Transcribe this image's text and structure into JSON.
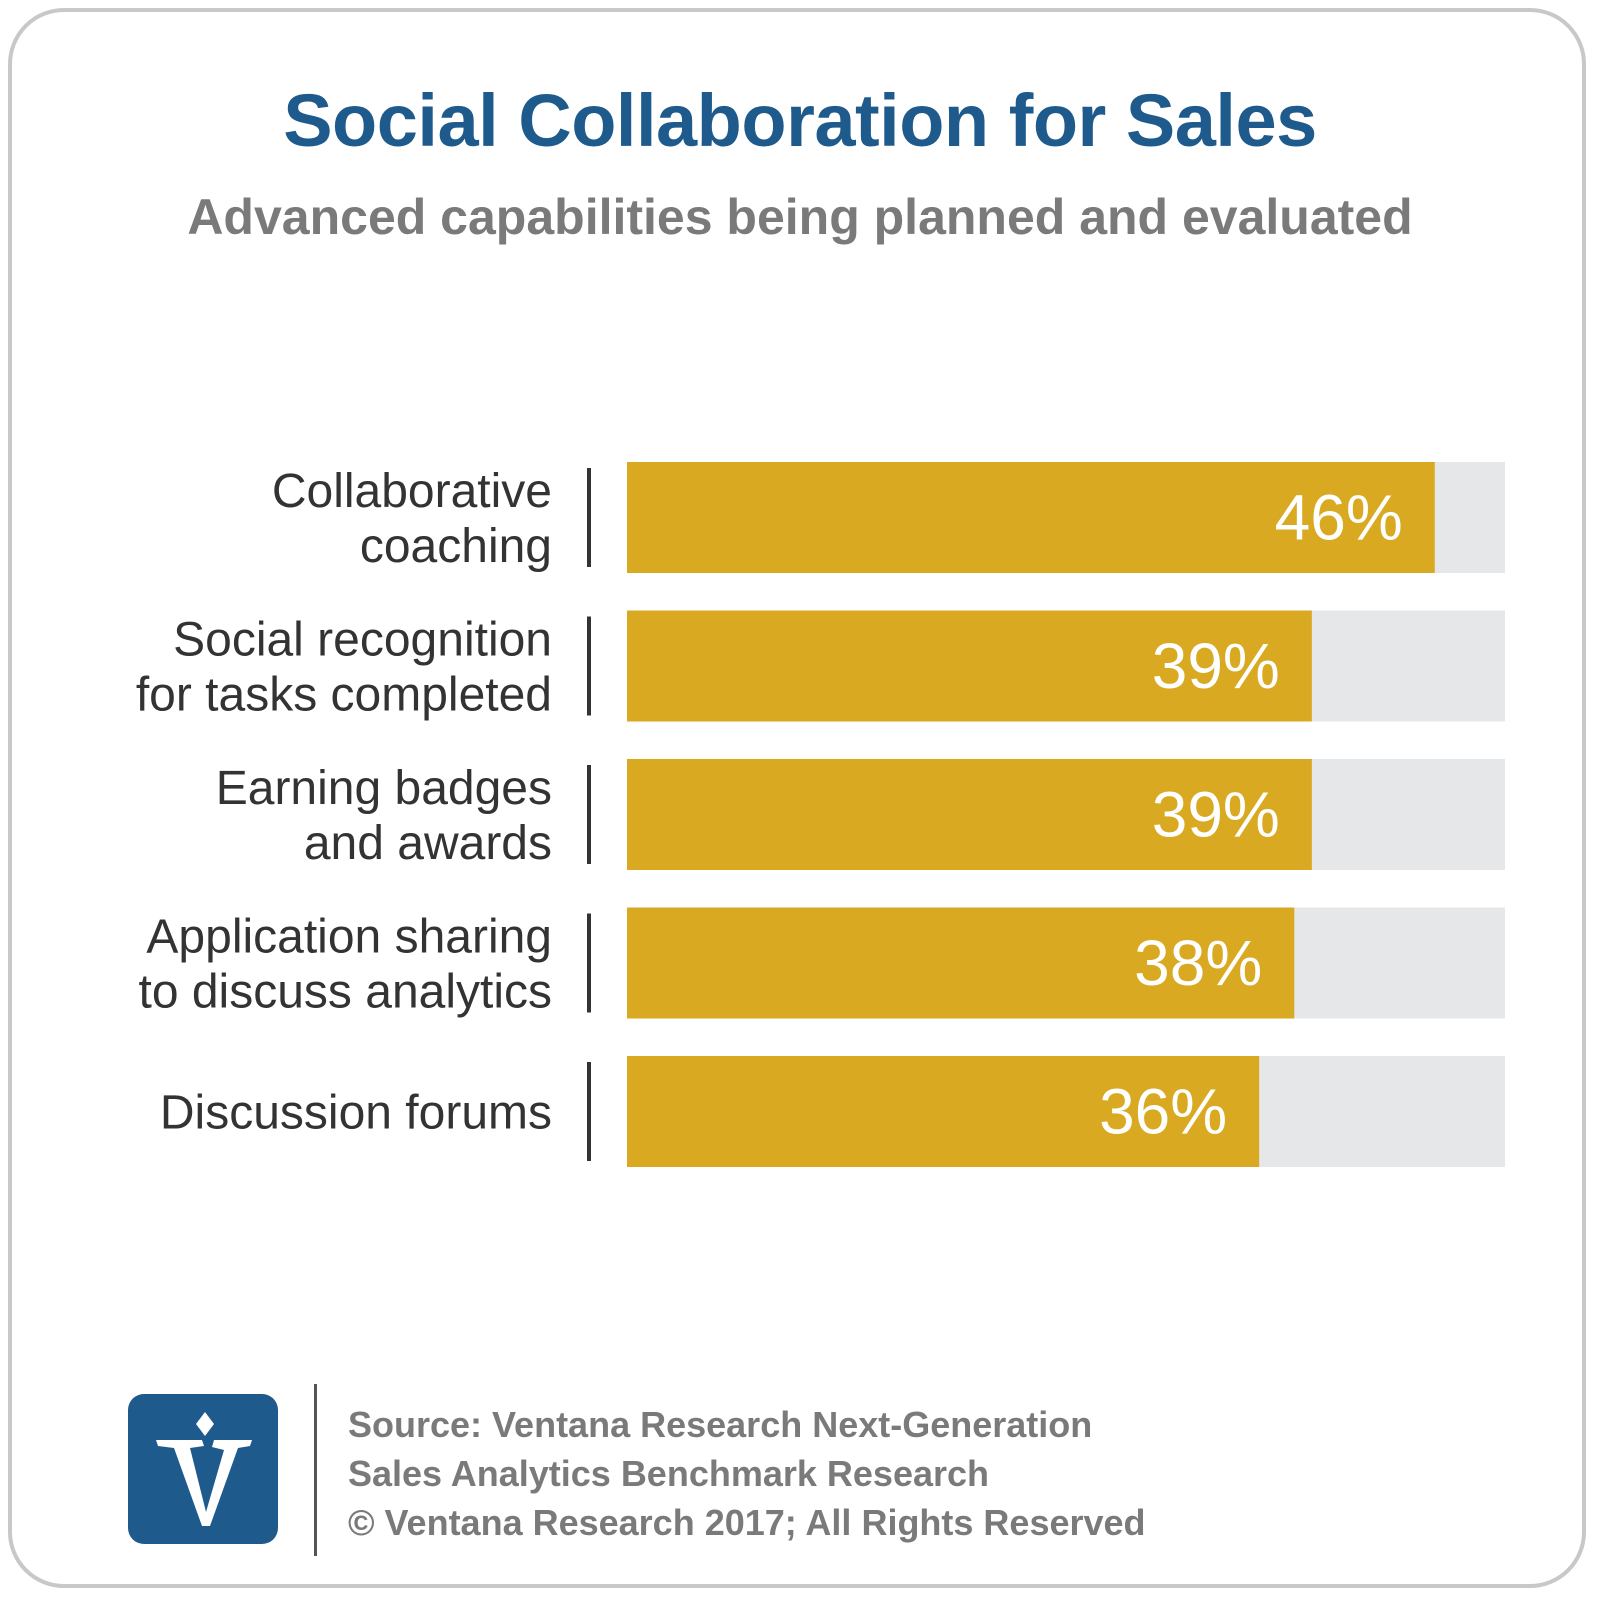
{
  "colors": {
    "title": "#1f5a8c",
    "subtitle": "#7a7a7a",
    "bar": "#d9a922",
    "bar_track": "#e6e7e8",
    "logo_bg": "#1f5a8c"
  },
  "chart_data": {
    "type": "bar",
    "orientation": "horizontal",
    "title": "Social Collaboration for Sales",
    "subtitle": "Advanced capabilities being planned and evaluated",
    "categories": [
      [
        "Collaborative",
        "coaching"
      ],
      [
        "Social recognition",
        "for tasks completed"
      ],
      [
        "Earning badges",
        "and awards"
      ],
      [
        "Application sharing",
        "to discuss analytics"
      ],
      [
        "Discussion forums"
      ]
    ],
    "values": [
      46,
      39,
      39,
      38,
      36
    ],
    "value_labels": [
      "46%",
      "39%",
      "39%",
      "38%",
      "36%"
    ],
    "xlim": [
      0,
      50
    ],
    "grid": false,
    "legend": "none"
  },
  "footer": {
    "line1": "Source: Ventana Research Next-Generation",
    "line2": "Sales Analytics Benchmark Research",
    "line3": "© Ventana Research 2017; All Rights Reserved"
  },
  "logo": {
    "icon": "ventana-v-logo-icon"
  }
}
